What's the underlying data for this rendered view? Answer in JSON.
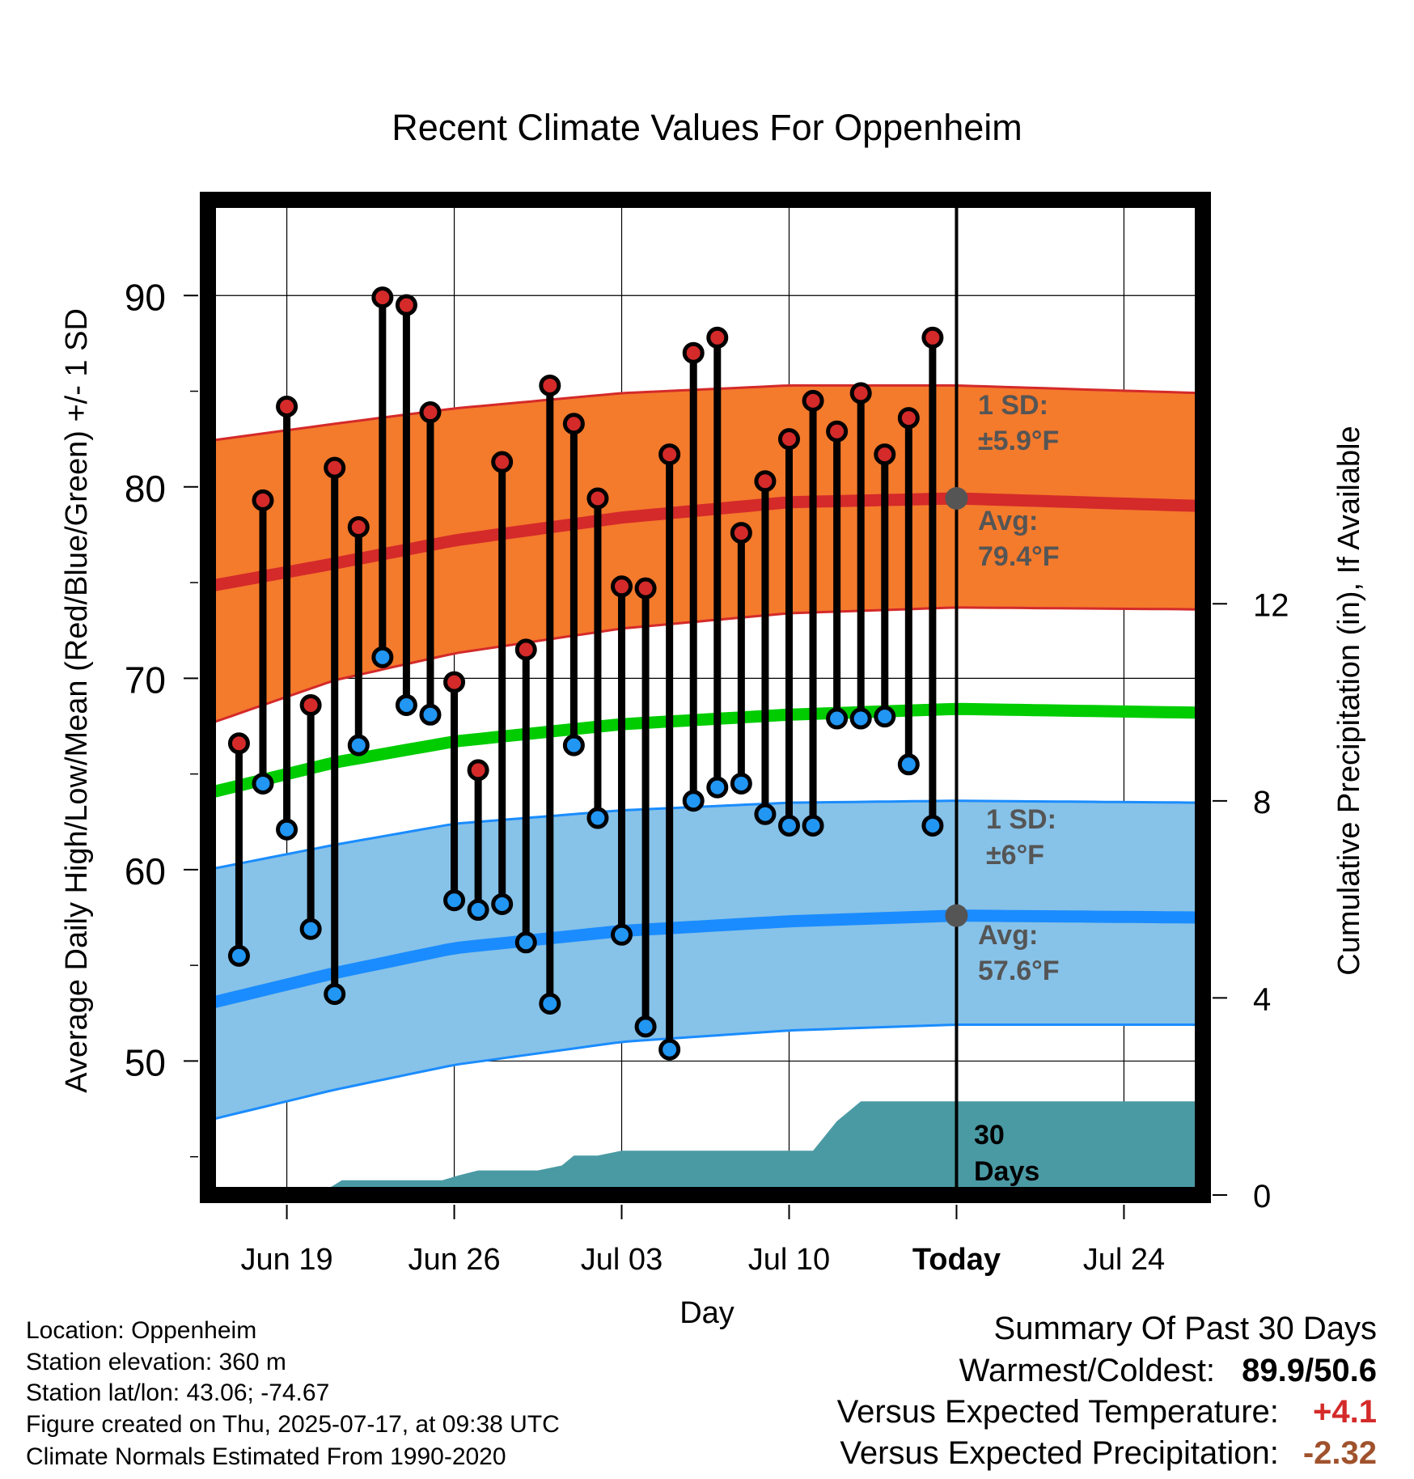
{
  "chart_data": {
    "type": "line",
    "title": "Recent Climate Values For Oppenheim",
    "xlabel": "Day",
    "ylabel": "Average Daily High/Low/Mean (Red/Blue/Green) +/- 1 SD",
    "ylabel_right": "Cumulative Precipitation (in), If Available",
    "ylim": [
      43,
      95
    ],
    "y_ticks": [
      50,
      60,
      70,
      80,
      90
    ],
    "y2lim": [
      0,
      20.2
    ],
    "y2_ticks": [
      0,
      4,
      8,
      12
    ],
    "xlim": [
      -3.3,
      38.3
    ],
    "x_ticks": [
      {
        "day": 0,
        "label": "Jun 19"
      },
      {
        "day": 7,
        "label": "Jun 26"
      },
      {
        "day": 14,
        "label": "Jul 03"
      },
      {
        "day": 21,
        "label": "Jul 10"
      },
      {
        "day": 28,
        "label": "Today"
      },
      {
        "day": 35,
        "label": "Jul 24"
      }
    ],
    "today_day": 28,
    "grid": true,
    "observed_high": [
      66.6,
      79.3,
      84.2,
      68.6,
      81.0,
      77.9,
      89.9,
      89.5,
      83.9,
      69.8,
      65.2,
      81.3,
      71.5,
      85.3,
      83.3,
      79.4,
      74.8,
      74.7,
      81.7,
      87.0,
      87.8,
      77.6,
      80.3,
      82.5,
      84.5,
      82.9,
      84.9,
      81.7,
      83.6,
      87.8
    ],
    "observed_low": [
      55.5,
      64.5,
      62.1,
      56.9,
      53.5,
      66.5,
      71.1,
      68.6,
      68.1,
      58.4,
      57.9,
      58.2,
      56.2,
      53.0,
      66.5,
      62.7,
      56.6,
      51.8,
      50.6,
      63.6,
      64.3,
      64.5,
      62.9,
      62.3,
      62.3,
      67.9,
      67.9,
      68.0,
      65.5,
      62.3
    ],
    "observed_days_start": -2,
    "normals_days": [
      -3.3,
      2,
      7,
      14,
      21,
      28,
      38.3
    ],
    "normal_high": [
      74.8,
      76.0,
      77.2,
      78.4,
      79.2,
      79.4,
      79.0
    ],
    "normal_high_sd_upper": [
      82.4,
      83.3,
      84.1,
      84.9,
      85.3,
      85.3,
      84.9
    ],
    "normal_high_sd_lower": [
      67.6,
      69.9,
      71.3,
      72.6,
      73.4,
      73.7,
      73.6
    ],
    "normal_mean": [
      64.0,
      65.6,
      66.7,
      67.6,
      68.1,
      68.4,
      68.2
    ],
    "normal_low": [
      53.0,
      54.6,
      55.9,
      56.8,
      57.3,
      57.6,
      57.5
    ],
    "normal_low_sd_upper": [
      60.0,
      61.3,
      62.4,
      63.1,
      63.5,
      63.6,
      63.5
    ],
    "normal_low_sd_lower": [
      46.9,
      48.5,
      49.8,
      51.0,
      51.6,
      51.9,
      51.9
    ],
    "cumulative_precip_days": [
      -3.3,
      1.3,
      2.3,
      3.5,
      5.5,
      6.5,
      7.2,
      8.0,
      9.0,
      10.5,
      11.5,
      12.0,
      13.0,
      14.0,
      15.5,
      17.0,
      20.5,
      21.0,
      22.0,
      23.0,
      24.0,
      27.0,
      28.0,
      38.3
    ],
    "cumulative_precip": [
      0,
      0,
      0.3,
      0.3,
      0.3,
      0.3,
      0.4,
      0.5,
      0.5,
      0.5,
      0.6,
      0.8,
      0.8,
      0.9,
      0.9,
      0.9,
      0.9,
      0.9,
      0.9,
      1.5,
      1.9,
      1.9,
      1.9,
      1.9
    ],
    "annotations": {
      "high_sd": "1 SD:",
      "high_sd_val": "±5.9°F",
      "high_avg": "Avg:",
      "high_avg_val": "79.4°F",
      "low_sd": "1 SD:",
      "low_sd_val": "±6°F",
      "low_avg": "Avg:",
      "low_avg_val": "57.6°F",
      "days_count": "30",
      "days_word": "Days"
    },
    "colors": {
      "high_band": "#f47a2c",
      "high_line": "#d42a2a",
      "mean_line": "#00cc00",
      "low_band": "#87c2e8",
      "low_line": "#1a8cff",
      "precip": "#4a9aa4",
      "high_marker": "#d42a2a",
      "low_marker": "#2196f3",
      "annotation_text": "#555555"
    }
  },
  "info": {
    "location": "Location: Oppenheim",
    "elevation": "Station elevation: 360 m",
    "latlon": "Station lat/lon: 43.06; -74.67",
    "created": "Figure created on Thu, 2025-07-17, at 09:38 UTC",
    "normals": "Climate Normals Estimated From 1990-2020"
  },
  "summary": {
    "title": "Summary Of Past 30 Days",
    "warm_cold_label": "Warmest/Coldest:",
    "warm_cold_value": "89.9/50.6",
    "temp_label": "Versus Expected Temperature:",
    "temp_value": "+4.1",
    "temp_color": "#d42a2a",
    "precip_label": "Versus Expected Precipitation:",
    "precip_value": "-2.32",
    "precip_color": "#a0522d"
  }
}
